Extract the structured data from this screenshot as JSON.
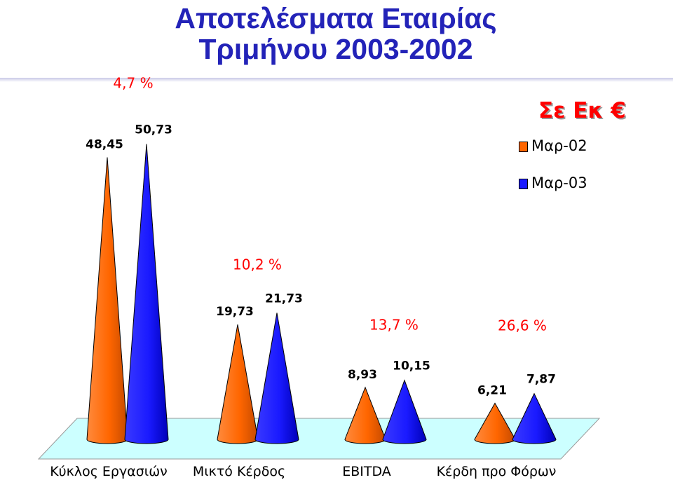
{
  "title": {
    "line1": "Αποτελέσματα Εταιρίας",
    "line2": "Τριμήνου 2003-2002"
  },
  "unit_label": "Σε Εκ €",
  "chart_data": {
    "type": "bar",
    "shape": "cone",
    "categories": [
      "Κύκλος Εργασιών",
      "Μικτό Κέρδος",
      "EBITDA",
      "Κέρδη προ Φόρων"
    ],
    "series": [
      {
        "name": "Μαρ-02",
        "color": "#ff6600",
        "values": [
          48.45,
          19.73,
          8.93,
          6.21
        ],
        "labels": [
          "48,45",
          "19,73",
          "8,93",
          "6,21"
        ]
      },
      {
        "name": "Μαρ-03",
        "color": "#1a1aff",
        "values": [
          50.73,
          21.73,
          10.15,
          7.87
        ],
        "labels": [
          "50,73",
          "21,73",
          "10,15",
          "7,87"
        ]
      }
    ],
    "growth_labels": [
      "4,7 %",
      "10,2 %",
      "13,7 %",
      "26,6 %"
    ],
    "growth_color": "#ff0000",
    "floor_color": "#ccffff",
    "ylim": [
      0,
      52
    ]
  }
}
